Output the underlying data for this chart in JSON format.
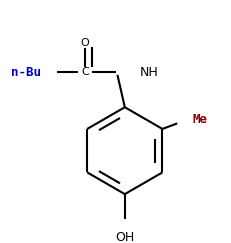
{
  "bg_color": "#ffffff",
  "line_color": "#000000",
  "label_color_nbu": "#0000cd",
  "label_color_me": "#8b0000",
  "label_color_black": "#000000",
  "line_width": 1.5,
  "font_size_small": 8,
  "font_size_med": 9,
  "figsize": [
    2.31,
    2.43
  ],
  "dpi": 100,
  "xlim": [
    0,
    231
  ],
  "ylim": [
    0,
    243
  ]
}
